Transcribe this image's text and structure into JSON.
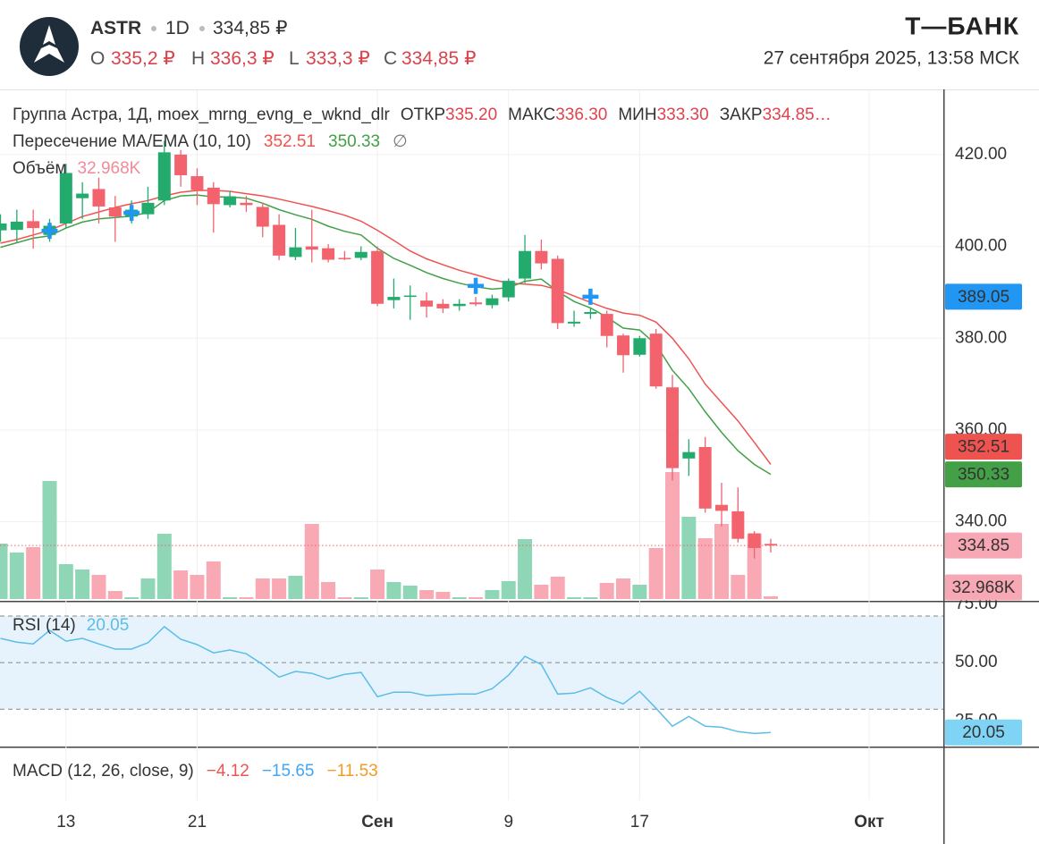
{
  "header": {
    "symbol": "ASTR",
    "interval": "1D",
    "price": "334,85 ₽",
    "ohlc": [
      {
        "key": "O",
        "value": "335,2 ₽"
      },
      {
        "key": "H",
        "value": "336,3 ₽"
      },
      {
        "key": "L",
        "value": "333,3 ₽"
      },
      {
        "key": "C",
        "value": "334,85 ₽"
      }
    ],
    "brand": "Т—БАНК",
    "datetime": "27 сентября 2025, 13:58 МСК"
  },
  "chart_data": [
    {
      "type": "candlestick",
      "title": "Группа Астра, 1Д, moex_mrng_evng_e_wknd_dlr",
      "ohlc_legend": [
        {
          "key": "ОТКР",
          "value": "335.20"
        },
        {
          "key": "МАКС",
          "value": "336.30"
        },
        {
          "key": "МИН",
          "value": "333.30"
        },
        {
          "key": "ЗАКР",
          "value": "334.85…"
        }
      ],
      "categories": [
        null,
        null,
        null,
        null,
        "13",
        null,
        null,
        null,
        null,
        null,
        null,
        null,
        "21",
        null,
        null,
        null,
        null,
        null,
        null,
        null,
        null,
        null,
        null,
        "Сен",
        null,
        null,
        null,
        null,
        null,
        null,
        null,
        "9",
        null,
        null,
        null,
        null,
        null,
        null,
        null,
        "17",
        null,
        null,
        null,
        null,
        null,
        null,
        null,
        null,
        null,
        null,
        null,
        null,
        null,
        "Окт"
      ],
      "open": [
        403.5,
        403.6,
        405.5,
        402.5,
        405,
        410.5,
        412.5,
        408.5,
        406.5,
        407,
        410,
        420,
        415.3,
        412.8,
        409,
        409.5,
        408.6,
        404.7,
        397.7,
        400,
        399.6,
        397.5,
        397.5,
        399,
        388.3,
        389,
        388.2,
        387.5,
        387,
        387.8,
        387.2,
        388.9,
        393,
        399,
        397.3,
        383.2,
        385.3,
        385.3,
        380.6,
        376.4,
        381,
        369.3,
        353.8,
        356.3,
        343.7,
        342.3,
        337.5,
        335.2,
        null,
        null,
        null,
        null,
        null,
        null
      ],
      "high": [
        407,
        408,
        408,
        406,
        418,
        414,
        415,
        411,
        410,
        413,
        423,
        421,
        417,
        414,
        412,
        411,
        409.5,
        407,
        404,
        408,
        400.5,
        399,
        400,
        400,
        393,
        391.5,
        390,
        388.5,
        388.5,
        389,
        389.5,
        393,
        402.5,
        401.5,
        398,
        386,
        386.5,
        386,
        381,
        380.5,
        382,
        372,
        358,
        358.5,
        348.5,
        347.5,
        338,
        336.3,
        null,
        null,
        null,
        null,
        null,
        null
      ],
      "low": [
        401,
        401,
        399.5,
        401,
        404,
        406,
        405,
        401,
        405,
        406,
        409,
        413,
        409,
        403,
        408.5,
        407.5,
        402,
        397,
        397,
        396.5,
        396.5,
        397,
        397,
        387,
        386.5,
        384,
        384.5,
        385.5,
        386,
        387,
        386.5,
        388,
        392,
        395,
        382,
        382.5,
        384.2,
        378,
        372.5,
        376,
        369,
        349,
        350,
        342,
        339,
        335.5,
        332,
        333.3,
        null,
        null,
        null,
        null,
        null,
        null
      ],
      "close": [
        405,
        405.4,
        404,
        404.5,
        416,
        411.5,
        408.7,
        406.5,
        408,
        409.5,
        420.5,
        415.5,
        412.3,
        409.2,
        410.9,
        409,
        404.3,
        398,
        399.8,
        399.3,
        397.1,
        397.3,
        398.8,
        387.5,
        389,
        389.3,
        386.9,
        386.5,
        387.5,
        387.4,
        388.7,
        392.5,
        399,
        396.3,
        383.3,
        383.6,
        385.7,
        380.5,
        376.3,
        380,
        369.5,
        351.7,
        355.2,
        342.9,
        342.4,
        336.3,
        334.3,
        334.85,
        null,
        null,
        null,
        null,
        null,
        null
      ],
      "up_color": "#22ab6d",
      "down_color": "#f2636e",
      "ylim": [
        322.8,
        434.2
      ],
      "yticks": [
        {
          "value": 420,
          "label": "420.00"
        },
        {
          "value": 400,
          "label": "400.00"
        },
        {
          "value": 380,
          "label": "380.00"
        },
        {
          "value": 360,
          "label": "360.00"
        },
        {
          "value": 340,
          "label": "340.00"
        }
      ],
      "grid": true
    },
    {
      "type": "line",
      "title": "Пересечение MA/EMA (10, 10)",
      "symbol": "∅",
      "series": [
        {
          "color": "#ef5350",
          "values": [
            400.7,
            401.5,
            402.5,
            403.5,
            405,
            406.5,
            407.5,
            408.5,
            409.3,
            410,
            411,
            411.8,
            412.2,
            412.2,
            412,
            411.5,
            411,
            410.3,
            409.5,
            408.7,
            407.8,
            406.8,
            405.5,
            403.5,
            401.3,
            399,
            397.3,
            396,
            394.8,
            393.8,
            392.8,
            392,
            391.8,
            391.5,
            390.6,
            389.2,
            387.8,
            386.5,
            385.5,
            385,
            383.5,
            380,
            375.5,
            370,
            366,
            362,
            357.3,
            352.51,
            null,
            null,
            null,
            null,
            null,
            null
          ]
        },
        {
          "color": "#43a047",
          "values": [
            399.8,
            400.8,
            401.8,
            402.3,
            404,
            405.3,
            406,
            406.3,
            406.6,
            407.4,
            410,
            411,
            411.2,
            410.8,
            410.8,
            410.5,
            409.4,
            408,
            406.9,
            405.9,
            404.4,
            403.3,
            402.5,
            399.6,
            397.4,
            395.9,
            394.3,
            393,
            392,
            391.2,
            390.7,
            391,
            392.4,
            392.9,
            390.2,
            388,
            386.6,
            384.6,
            382.2,
            381.8,
            378.6,
            373,
            369,
            364,
            359.5,
            355.5,
            352.5,
            350.33,
            null,
            null,
            null,
            null,
            null,
            null
          ]
        }
      ],
      "markers": {
        "color": "#2196f3",
        "values": [
          null,
          null,
          null,
          403.4,
          null,
          null,
          null,
          null,
          407.3,
          null,
          null,
          null,
          null,
          null,
          null,
          null,
          null,
          null,
          null,
          null,
          null,
          null,
          null,
          null,
          null,
          null,
          null,
          null,
          null,
          391.4,
          null,
          null,
          null,
          null,
          null,
          null,
          389.05,
          null,
          null,
          null,
          null,
          null,
          null,
          null,
          null,
          null,
          null,
          null,
          null,
          null,
          null,
          null,
          null,
          null
        ]
      }
    },
    {
      "type": "bar",
      "title": "Объём",
      "label_color": "#f28b99",
      "values": [
        682000,
        572000,
        638000,
        1452000,
        429000,
        363000,
        297000,
        99000,
        22000,
        253000,
        803000,
        352000,
        297000,
        462000,
        22000,
        22000,
        253000,
        253000,
        286000,
        924000,
        209000,
        22000,
        22000,
        363000,
        209000,
        165000,
        110000,
        88000,
        22000,
        22000,
        110000,
        220000,
        737000,
        176000,
        275000,
        22000,
        22000,
        198000,
        253000,
        176000,
        627000,
        1562000,
        1012000,
        748000,
        924000,
        297000,
        803000,
        32968,
        null,
        null,
        null,
        null,
        null,
        null
      ],
      "value_labels": [
        null,
        null,
        null,
        null,
        null,
        null,
        null,
        null,
        null,
        null,
        null,
        null,
        null,
        null,
        null,
        null,
        null,
        null,
        null,
        null,
        null,
        null,
        null,
        null,
        null,
        null,
        null,
        null,
        null,
        null,
        null,
        null,
        null,
        null,
        null,
        null,
        null,
        null,
        null,
        null,
        null,
        null,
        null,
        null,
        null,
        null,
        null,
        "32.968K",
        null,
        null,
        null,
        null,
        null,
        null
      ],
      "up_color": "#8fd6b6",
      "down_color": "#f8a9b3"
    },
    {
      "type": "line",
      "title": "RSI (14)",
      "color": "#5bbde8",
      "values": [
        60.4,
        58.8,
        58,
        63.8,
        59.2,
        60.4,
        58,
        55.8,
        55.8,
        58.5,
        65.4,
        60,
        57.7,
        54.2,
        55.4,
        53.8,
        49.2,
        43.8,
        46.2,
        45.4,
        43,
        45,
        45.8,
        35.4,
        37.3,
        37.3,
        35.8,
        36.2,
        36.5,
        36.5,
        38.8,
        44.6,
        52.7,
        49.2,
        36.5,
        36.9,
        39.2,
        35,
        32.3,
        37.7,
        30.4,
        22.7,
        26.9,
        22.7,
        22.3,
        20.4,
        19.6,
        20.05,
        null,
        null,
        null,
        null,
        null,
        null
      ],
      "ylim": [
        14,
        76.5
      ],
      "yticks": [
        {
          "value": 75,
          "label": "75.00"
        },
        {
          "value": 50,
          "label": "50.00"
        },
        {
          "value": 25,
          "label": "25.00"
        }
      ],
      "band": [
        30,
        70
      ],
      "band_color": "#e6f3fc"
    },
    {
      "type": "indicator",
      "title": "MACD (12, 26, close, 9)",
      "values": [
        -4.12,
        -15.65,
        -11.53
      ],
      "value_labels": [
        "−4.12",
        "−15.65",
        "−11.53"
      ],
      "colors": [
        "#ef5350",
        "#42a5f5",
        "#f59a23"
      ]
    }
  ]
}
